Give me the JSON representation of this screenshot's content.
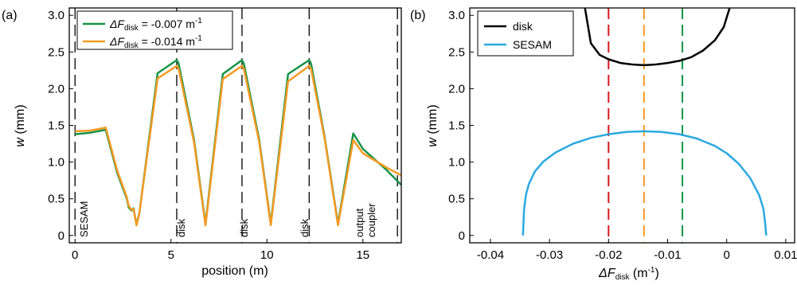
{
  "chart_data": [
    {
      "type": "line",
      "panel_label": "(a)",
      "xlabel": "position (m)",
      "ylabel_italic": "w",
      "ylabel_unit": " (mm)",
      "xlim": [
        -0.3,
        17.0
      ],
      "ylim": [
        -0.1,
        3.1
      ],
      "xticks": [
        0,
        5,
        10,
        15
      ],
      "yticks": [
        0,
        0.5,
        1.0,
        1.5,
        2.0,
        2.5,
        3.0
      ],
      "ytick_labels": [
        "0",
        "0.5",
        "1.0",
        "1.5",
        "2.0",
        "2.5",
        "3.0"
      ],
      "legend_position": "top-left",
      "series": [
        {
          "legend_prefix": "ΔF",
          "legend_sub": "disk",
          "legend_value": " = -0.007 m",
          "legend_sup": "-1",
          "color": "#159447",
          "x": [
            0,
            0.8,
            1.6,
            2.2,
            2.7,
            2.8,
            2.95,
            3.05,
            3.2,
            3.35,
            4.3,
            5.3,
            5.4,
            6.2,
            6.8,
            7.7,
            8.7,
            8.8,
            9.6,
            10.2,
            11.1,
            12.2,
            12.3,
            13.0,
            13.7,
            14.5,
            15.0,
            16.2,
            17.0
          ],
          "y": [
            1.38,
            1.4,
            1.44,
            0.85,
            0.5,
            0.38,
            0.34,
            0.37,
            0.15,
            0.3,
            2.21,
            2.39,
            2.34,
            1.3,
            0.16,
            2.2,
            2.39,
            2.34,
            1.3,
            0.16,
            2.2,
            2.39,
            2.34,
            1.35,
            0.16,
            1.39,
            1.18,
            0.9,
            0.69
          ]
        },
        {
          "legend_prefix": "ΔF",
          "legend_sub": "disk",
          "legend_value": " = -0.014 m",
          "legend_sup": "-1",
          "color": "#f59a23",
          "x": [
            0,
            0.8,
            1.6,
            2.2,
            2.7,
            2.8,
            2.95,
            3.05,
            3.2,
            3.35,
            4.3,
            5.3,
            5.4,
            6.2,
            6.8,
            7.7,
            8.7,
            8.8,
            9.6,
            10.2,
            11.1,
            12.2,
            12.3,
            13.0,
            13.7,
            14.5,
            15.0,
            16.2,
            17.0
          ],
          "y": [
            1.42,
            1.43,
            1.47,
            0.88,
            0.52,
            0.4,
            0.35,
            0.36,
            0.14,
            0.3,
            2.14,
            2.31,
            2.27,
            1.27,
            0.14,
            2.13,
            2.31,
            2.27,
            1.27,
            0.14,
            2.1,
            2.31,
            2.27,
            1.33,
            0.14,
            1.3,
            1.12,
            0.93,
            0.82
          ]
        }
      ],
      "markers": [
        {
          "x": 0,
          "label": "SESAM"
        },
        {
          "x": 5.3,
          "label": "disk"
        },
        {
          "x": 8.7,
          "label": "disk"
        },
        {
          "x": 12.2,
          "label": "disk"
        },
        {
          "x": 16.8,
          "label": "output coupler",
          "label_line1": "output",
          "label_line2": "coupler"
        }
      ]
    },
    {
      "type": "line",
      "panel_label": "(b)",
      "xlabel_prefix": "ΔF",
      "xlabel_sub": "disk",
      "xlabel_unit": " (m",
      "xlabel_sup": "-1",
      "xlabel_close": ")",
      "ylabel_italic": "w",
      "ylabel_unit": " (mm)",
      "xlim": [
        -0.0435,
        0.0115
      ],
      "ylim": [
        -0.1,
        3.1
      ],
      "xticks": [
        -0.04,
        -0.03,
        -0.02,
        -0.01,
        0,
        0.01
      ],
      "xtick_labels": [
        "-0.04",
        "-0.03",
        "-0.02",
        "-0.01",
        "0",
        "0.01"
      ],
      "yticks": [
        0,
        0.5,
        1.0,
        1.5,
        2.0,
        2.5,
        3.0
      ],
      "ytick_labels": [
        "0",
        "0.5",
        "1.0",
        "1.5",
        "2.0",
        "2.5",
        "3.0"
      ],
      "legend_position": "top-left",
      "series": [
        {
          "name": "disk",
          "color": "#000000",
          "x": [
            -0.024,
            -0.023,
            -0.0215,
            -0.02,
            -0.018,
            -0.016,
            -0.014,
            -0.012,
            -0.01,
            -0.008,
            -0.006,
            -0.004,
            -0.002,
            -0.0005,
            0.0005
          ],
          "y": [
            3.1,
            2.62,
            2.46,
            2.4,
            2.35,
            2.33,
            2.32,
            2.33,
            2.35,
            2.38,
            2.43,
            2.52,
            2.66,
            2.84,
            3.1
          ]
        },
        {
          "name": "SESAM",
          "color": "#2aa9e0",
          "x": [
            -0.0345,
            -0.0343,
            -0.034,
            -0.0335,
            -0.0325,
            -0.031,
            -0.029,
            -0.026,
            -0.023,
            -0.02,
            -0.017,
            -0.014,
            -0.011,
            -0.008,
            -0.005,
            -0.002,
            0.0,
            0.002,
            0.004,
            0.0055,
            0.0062,
            0.0065,
            0.0067
          ],
          "y": [
            0.0,
            0.35,
            0.55,
            0.7,
            0.87,
            1.01,
            1.13,
            1.25,
            1.33,
            1.38,
            1.41,
            1.42,
            1.41,
            1.38,
            1.32,
            1.22,
            1.12,
            0.98,
            0.78,
            0.55,
            0.37,
            0.18,
            0.0
          ]
        }
      ],
      "vlines": [
        {
          "x": -0.02,
          "color": "#d7191c"
        },
        {
          "x": -0.014,
          "color": "#f59a23"
        },
        {
          "x": -0.0075,
          "color": "#159447"
        }
      ]
    }
  ]
}
